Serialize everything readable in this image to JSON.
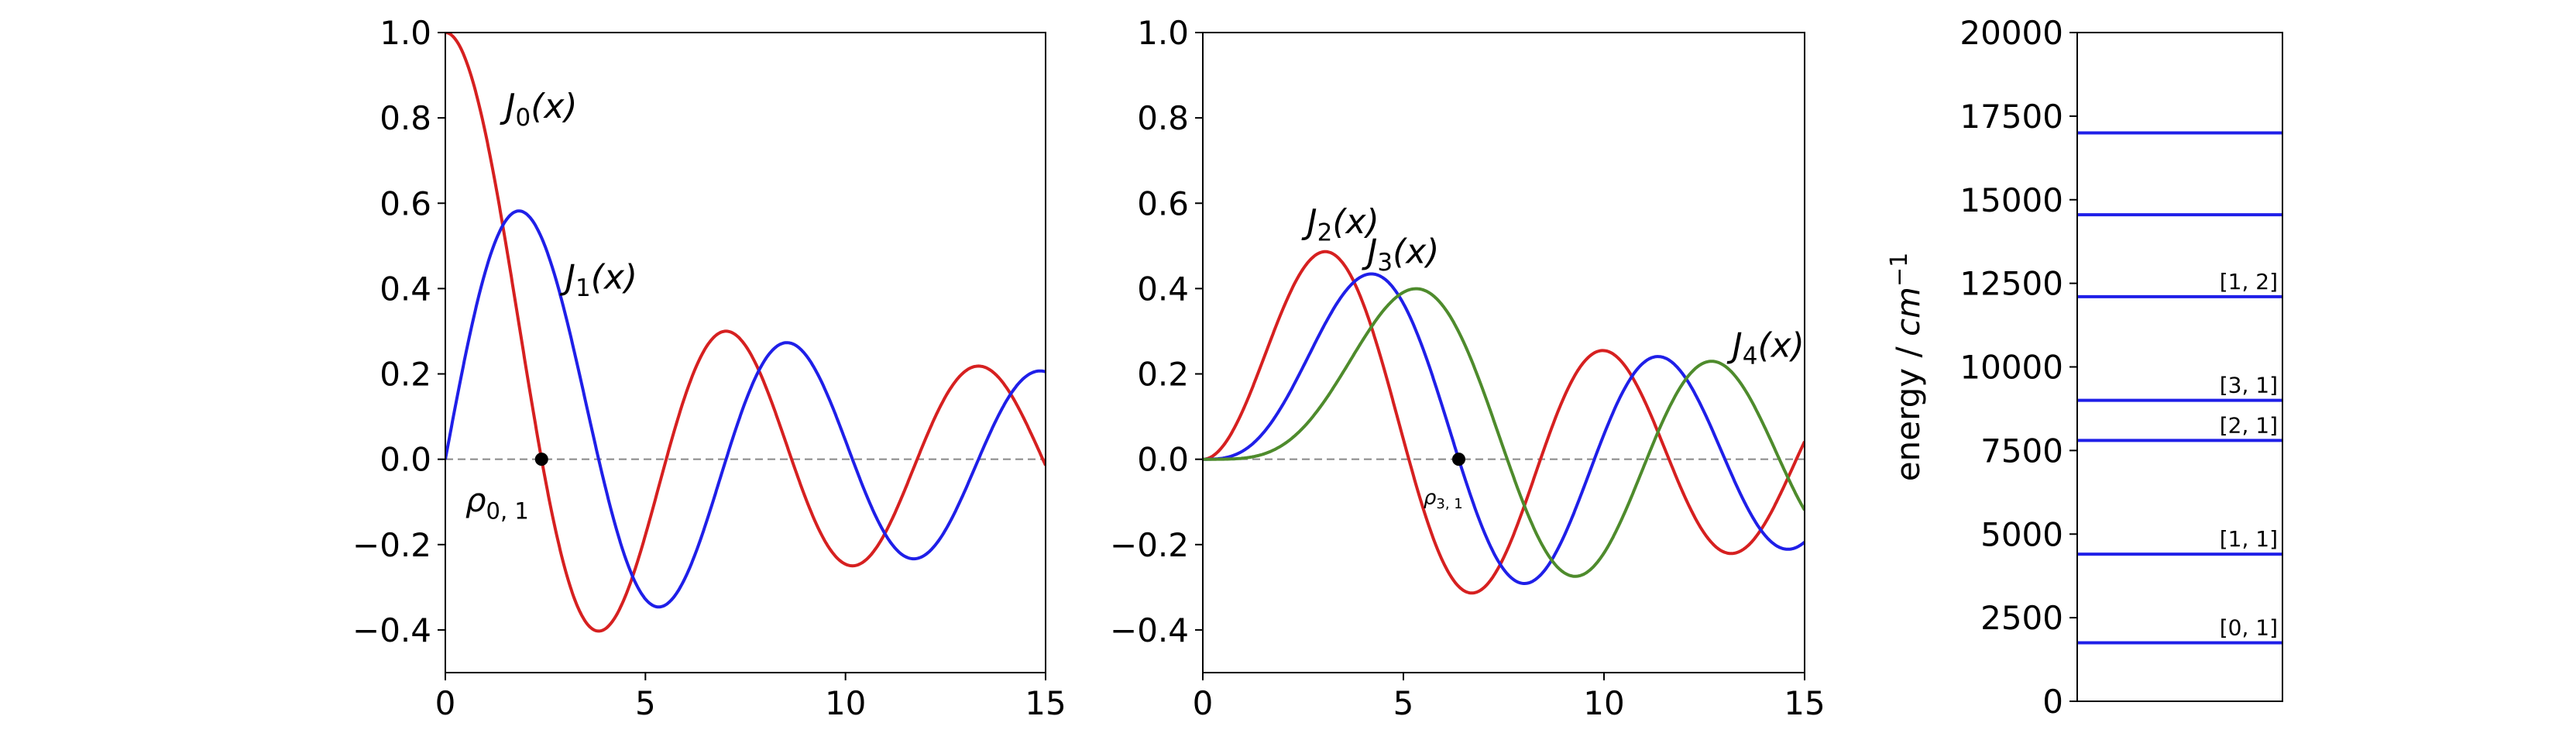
{
  "chart_data": [
    {
      "type": "line",
      "xlim": [
        0,
        15
      ],
      "ylim": [
        -0.5,
        1.0
      ],
      "xticks": [
        "0",
        "5",
        "10",
        "15"
      ],
      "yticks": [
        "−0.4",
        "−0.2",
        "0.0",
        "0.2",
        "0.4",
        "0.6",
        "0.8",
        "1.0"
      ],
      "grid": false,
      "reference_line": {
        "y": 0.0,
        "style": "dashed",
        "color": "#888888"
      },
      "series": [
        {
          "name": "J0(x)",
          "color": "#d62020",
          "x": [
            0,
            1,
            2,
            2.405,
            3,
            3.832,
            5,
            5.52,
            7,
            7.016,
            8,
            8.654,
            10,
            10.17,
            11.79,
            13,
            13.32,
            15
          ],
          "y": [
            1,
            0.765,
            0.224,
            0,
            -0.26,
            -0.403,
            -0.178,
            0,
            0.3,
            0.3,
            0.172,
            0,
            -0.246,
            -0.25,
            0,
            0.207,
            0.218,
            -0.014
          ]
        },
        {
          "name": "J1(x)",
          "color": "#1f1fe8",
          "x": [
            0,
            1,
            1.841,
            2,
            3,
            3.832,
            4,
            5,
            5.331,
            6,
            7,
            7.016,
            8,
            8.536,
            9,
            10,
            10.17,
            11,
            11.71,
            12,
            13,
            13.32,
            14,
            15
          ],
          "y": [
            0,
            0.44,
            0.582,
            0.577,
            0.339,
            0,
            -0.066,
            -0.328,
            -0.346,
            -0.277,
            -0.005,
            0,
            0.235,
            0.273,
            0.245,
            0.043,
            0,
            -0.177,
            -0.232,
            -0.223,
            -0.07,
            0,
            0.133,
            0.205
          ]
        }
      ],
      "annotations": [
        {
          "text": "J0(x)",
          "x": 1.5,
          "y": 0.8
        },
        {
          "text": "J1(x)",
          "x": 3.0,
          "y": 0.4
        },
        {
          "text": "ρ0, 1",
          "x": 0.5,
          "y": -0.05
        }
      ],
      "marker": {
        "x": 2.405,
        "y": 0.0
      }
    },
    {
      "type": "line",
      "xlim": [
        0,
        15
      ],
      "ylim": [
        -0.5,
        1.0
      ],
      "xticks": [
        "0",
        "5",
        "10",
        "15"
      ],
      "yticks": [
        "−0.4",
        "−0.2",
        "0.0",
        "0.2",
        "0.4",
        "0.6",
        "0.8",
        "1.0"
      ],
      "grid": false,
      "reference_line": {
        "y": 0.0,
        "style": "dashed",
        "color": "#888888"
      },
      "series": [
        {
          "name": "J2(x)",
          "color": "#d62020",
          "x": [
            0,
            1,
            2,
            3,
            3.054,
            4,
            5,
            5.136,
            6,
            6.706,
            7,
            8,
            8.417,
            9,
            10,
            10.52,
            11,
            12,
            13,
            13.59,
            14,
            15
          ],
          "y": [
            0,
            0.115,
            0.353,
            0.486,
            0.486,
            0.364,
            0.047,
            0,
            -0.243,
            -0.314,
            -0.301,
            -0.113,
            0,
            0.145,
            0.255,
            0.254,
            0.139,
            -0.085,
            -0.218,
            -0.223,
            -0.152,
            0.042
          ]
        },
        {
          "name": "J3(x)",
          "color": "#1f1fe8",
          "x": [
            0,
            1,
            2,
            3,
            4,
            4.201,
            5,
            6,
            6.38,
            7,
            8,
            8.015,
            9,
            9.761,
            10,
            11,
            11.35,
            12,
            13,
            13.02,
            14,
            14.5,
            15
          ],
          "y": [
            0,
            0.02,
            0.129,
            0.309,
            0.43,
            0.434,
            0.365,
            0.115,
            0,
            -0.168,
            -0.291,
            -0.291,
            -0.181,
            0,
            0.058,
            0.227,
            0.241,
            0.195,
            0,
            0,
            -0.177,
            -0.21,
            -0.194
          ]
        },
        {
          "name": "J4(x)",
          "color": "#4e8b2c",
          "x": [
            0,
            1,
            2,
            3,
            4,
            5,
            5.318,
            6,
            7,
            7.588,
            8,
            9,
            9.282,
            10,
            11,
            11.06,
            12,
            12.68,
            13,
            14,
            14.37,
            15
          ],
          "y": [
            0,
            0.002,
            0.034,
            0.132,
            0.281,
            0.391,
            0.4,
            0.358,
            0.158,
            0,
            -0.105,
            -0.265,
            -0.273,
            -0.22,
            0,
            0,
            0.182,
            0.23,
            0.219,
            0.081,
            0,
            -0.119
          ]
        }
      ],
      "annotations": [
        {
          "text": "J2(x)",
          "x": 2.6,
          "y": 0.53
        },
        {
          "text": "J3(x)",
          "x": 4.1,
          "y": 0.46
        },
        {
          "text": "J4(x)",
          "x": 13.2,
          "y": 0.24
        },
        {
          "text": "ρ3, 1",
          "x": 5.5,
          "y": -0.06
        }
      ],
      "marker": {
        "x": 6.38,
        "y": 0.0
      }
    },
    {
      "type": "energy-levels",
      "ylabel": "energy / cm−1",
      "ylim": [
        0,
        20000
      ],
      "yticks": [
        "0",
        "2500",
        "5000",
        "7500",
        "10000",
        "12500",
        "15000",
        "17500",
        "20000"
      ],
      "levels": [
        {
          "energy": 1750,
          "label": "[0, 1]"
        },
        {
          "energy": 4400,
          "label": "[1, 1]"
        },
        {
          "energy": 7800,
          "label": "[2, 1]"
        },
        {
          "energy": 9000,
          "label": "[3, 1]"
        },
        {
          "energy": 12100,
          "label": "[1, 2]"
        },
        {
          "energy": 14550,
          "label": ""
        },
        {
          "energy": 17000,
          "label": ""
        }
      ],
      "color": "#1f1fe8"
    }
  ]
}
